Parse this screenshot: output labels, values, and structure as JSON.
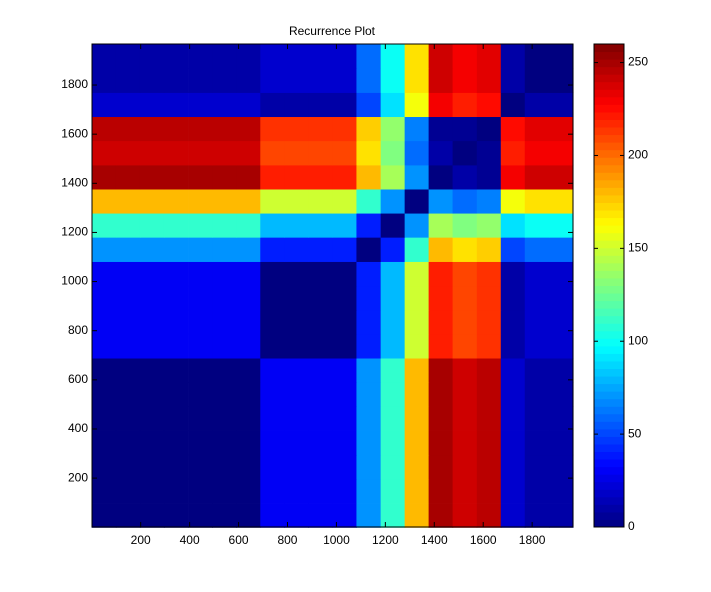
{
  "chart_data": {
    "type": "heatmap",
    "title": "Recurrence Plot",
    "colormap": "jet",
    "x": [
      49,
      148,
      246,
      344,
      443,
      541,
      639,
      738,
      836,
      934,
      1033,
      1131,
      1230,
      1328,
      1426,
      1524,
      1623,
      1721,
      1819,
      1918
    ],
    "y": [
      49,
      148,
      246,
      344,
      443,
      541,
      639,
      738,
      836,
      934,
      1033,
      1131,
      1230,
      1328,
      1426,
      1524,
      1623,
      1721,
      1819,
      1918
    ],
    "z": [
      [
        0,
        0,
        0,
        0,
        0,
        0,
        0,
        30,
        30,
        30,
        30,
        70,
        110,
        180,
        250,
        240,
        245,
        20,
        10,
        10
      ],
      [
        0,
        0,
        0,
        0,
        0,
        0,
        0,
        30,
        30,
        30,
        30,
        70,
        110,
        180,
        250,
        240,
        245,
        20,
        10,
        10
      ],
      [
        0,
        0,
        0,
        0,
        0,
        0,
        0,
        30,
        30,
        30,
        30,
        70,
        110,
        180,
        250,
        240,
        245,
        20,
        10,
        10
      ],
      [
        0,
        0,
        0,
        0,
        0,
        0,
        0,
        30,
        30,
        30,
        30,
        70,
        110,
        180,
        250,
        240,
        245,
        20,
        10,
        10
      ],
      [
        0,
        0,
        0,
        0,
        0,
        0,
        0,
        30,
        30,
        30,
        30,
        70,
        110,
        180,
        250,
        240,
        245,
        20,
        10,
        10
      ],
      [
        0,
        0,
        0,
        0,
        0,
        0,
        0,
        30,
        30,
        30,
        30,
        70,
        110,
        180,
        250,
        240,
        245,
        20,
        10,
        10
      ],
      [
        0,
        0,
        0,
        0,
        0,
        0,
        0,
        30,
        30,
        30,
        30,
        70,
        110,
        180,
        250,
        240,
        245,
        20,
        10,
        10
      ],
      [
        30,
        30,
        30,
        30,
        30,
        30,
        30,
        0,
        0,
        0,
        0,
        40,
        80,
        150,
        220,
        210,
        215,
        10,
        20,
        20
      ],
      [
        30,
        30,
        30,
        30,
        30,
        30,
        30,
        0,
        0,
        0,
        0,
        40,
        80,
        150,
        220,
        210,
        215,
        10,
        20,
        20
      ],
      [
        30,
        30,
        30,
        30,
        30,
        30,
        30,
        0,
        0,
        0,
        0,
        40,
        80,
        150,
        220,
        210,
        215,
        10,
        20,
        20
      ],
      [
        30,
        30,
        30,
        30,
        30,
        30,
        30,
        0,
        0,
        0,
        0,
        40,
        80,
        150,
        220,
        210,
        215,
        10,
        20,
        20
      ],
      [
        70,
        70,
        70,
        70,
        70,
        70,
        70,
        40,
        40,
        40,
        40,
        0,
        40,
        110,
        180,
        170,
        175,
        50,
        60,
        60
      ],
      [
        110,
        110,
        110,
        110,
        110,
        110,
        110,
        80,
        80,
        80,
        80,
        40,
        0,
        70,
        140,
        130,
        135,
        90,
        100,
        100
      ],
      [
        180,
        180,
        180,
        180,
        180,
        180,
        180,
        150,
        150,
        150,
        150,
        110,
        70,
        0,
        70,
        60,
        65,
        160,
        170,
        170
      ],
      [
        250,
        250,
        250,
        250,
        250,
        250,
        250,
        220,
        220,
        220,
        220,
        180,
        140,
        70,
        0,
        10,
        5,
        230,
        240,
        240
      ],
      [
        240,
        240,
        240,
        240,
        240,
        240,
        240,
        210,
        210,
        210,
        210,
        170,
        130,
        60,
        10,
        0,
        5,
        220,
        230,
        230
      ],
      [
        245,
        245,
        245,
        245,
        245,
        245,
        245,
        215,
        215,
        215,
        215,
        175,
        135,
        65,
        5,
        5,
        0,
        225,
        235,
        235
      ],
      [
        20,
        20,
        20,
        20,
        20,
        20,
        20,
        10,
        10,
        10,
        10,
        50,
        90,
        160,
        230,
        220,
        225,
        0,
        10,
        10
      ],
      [
        10,
        10,
        10,
        10,
        10,
        10,
        10,
        20,
        20,
        20,
        20,
        60,
        100,
        170,
        240,
        230,
        235,
        10,
        0,
        0
      ],
      [
        10,
        10,
        10,
        10,
        10,
        10,
        10,
        20,
        20,
        20,
        20,
        60,
        100,
        170,
        240,
        230,
        235,
        10,
        0,
        0
      ]
    ],
    "xlim": [
      1,
      1967
    ],
    "ylim": [
      1,
      1967
    ],
    "xticks": [
      200,
      400,
      600,
      800,
      1000,
      1200,
      1400,
      1600,
      1800
    ],
    "yticks": [
      200,
      400,
      600,
      800,
      1000,
      1200,
      1400,
      1600,
      1800
    ],
    "clim": [
      0,
      260
    ],
    "cticks": [
      0,
      50,
      100,
      150,
      200,
      250
    ]
  }
}
